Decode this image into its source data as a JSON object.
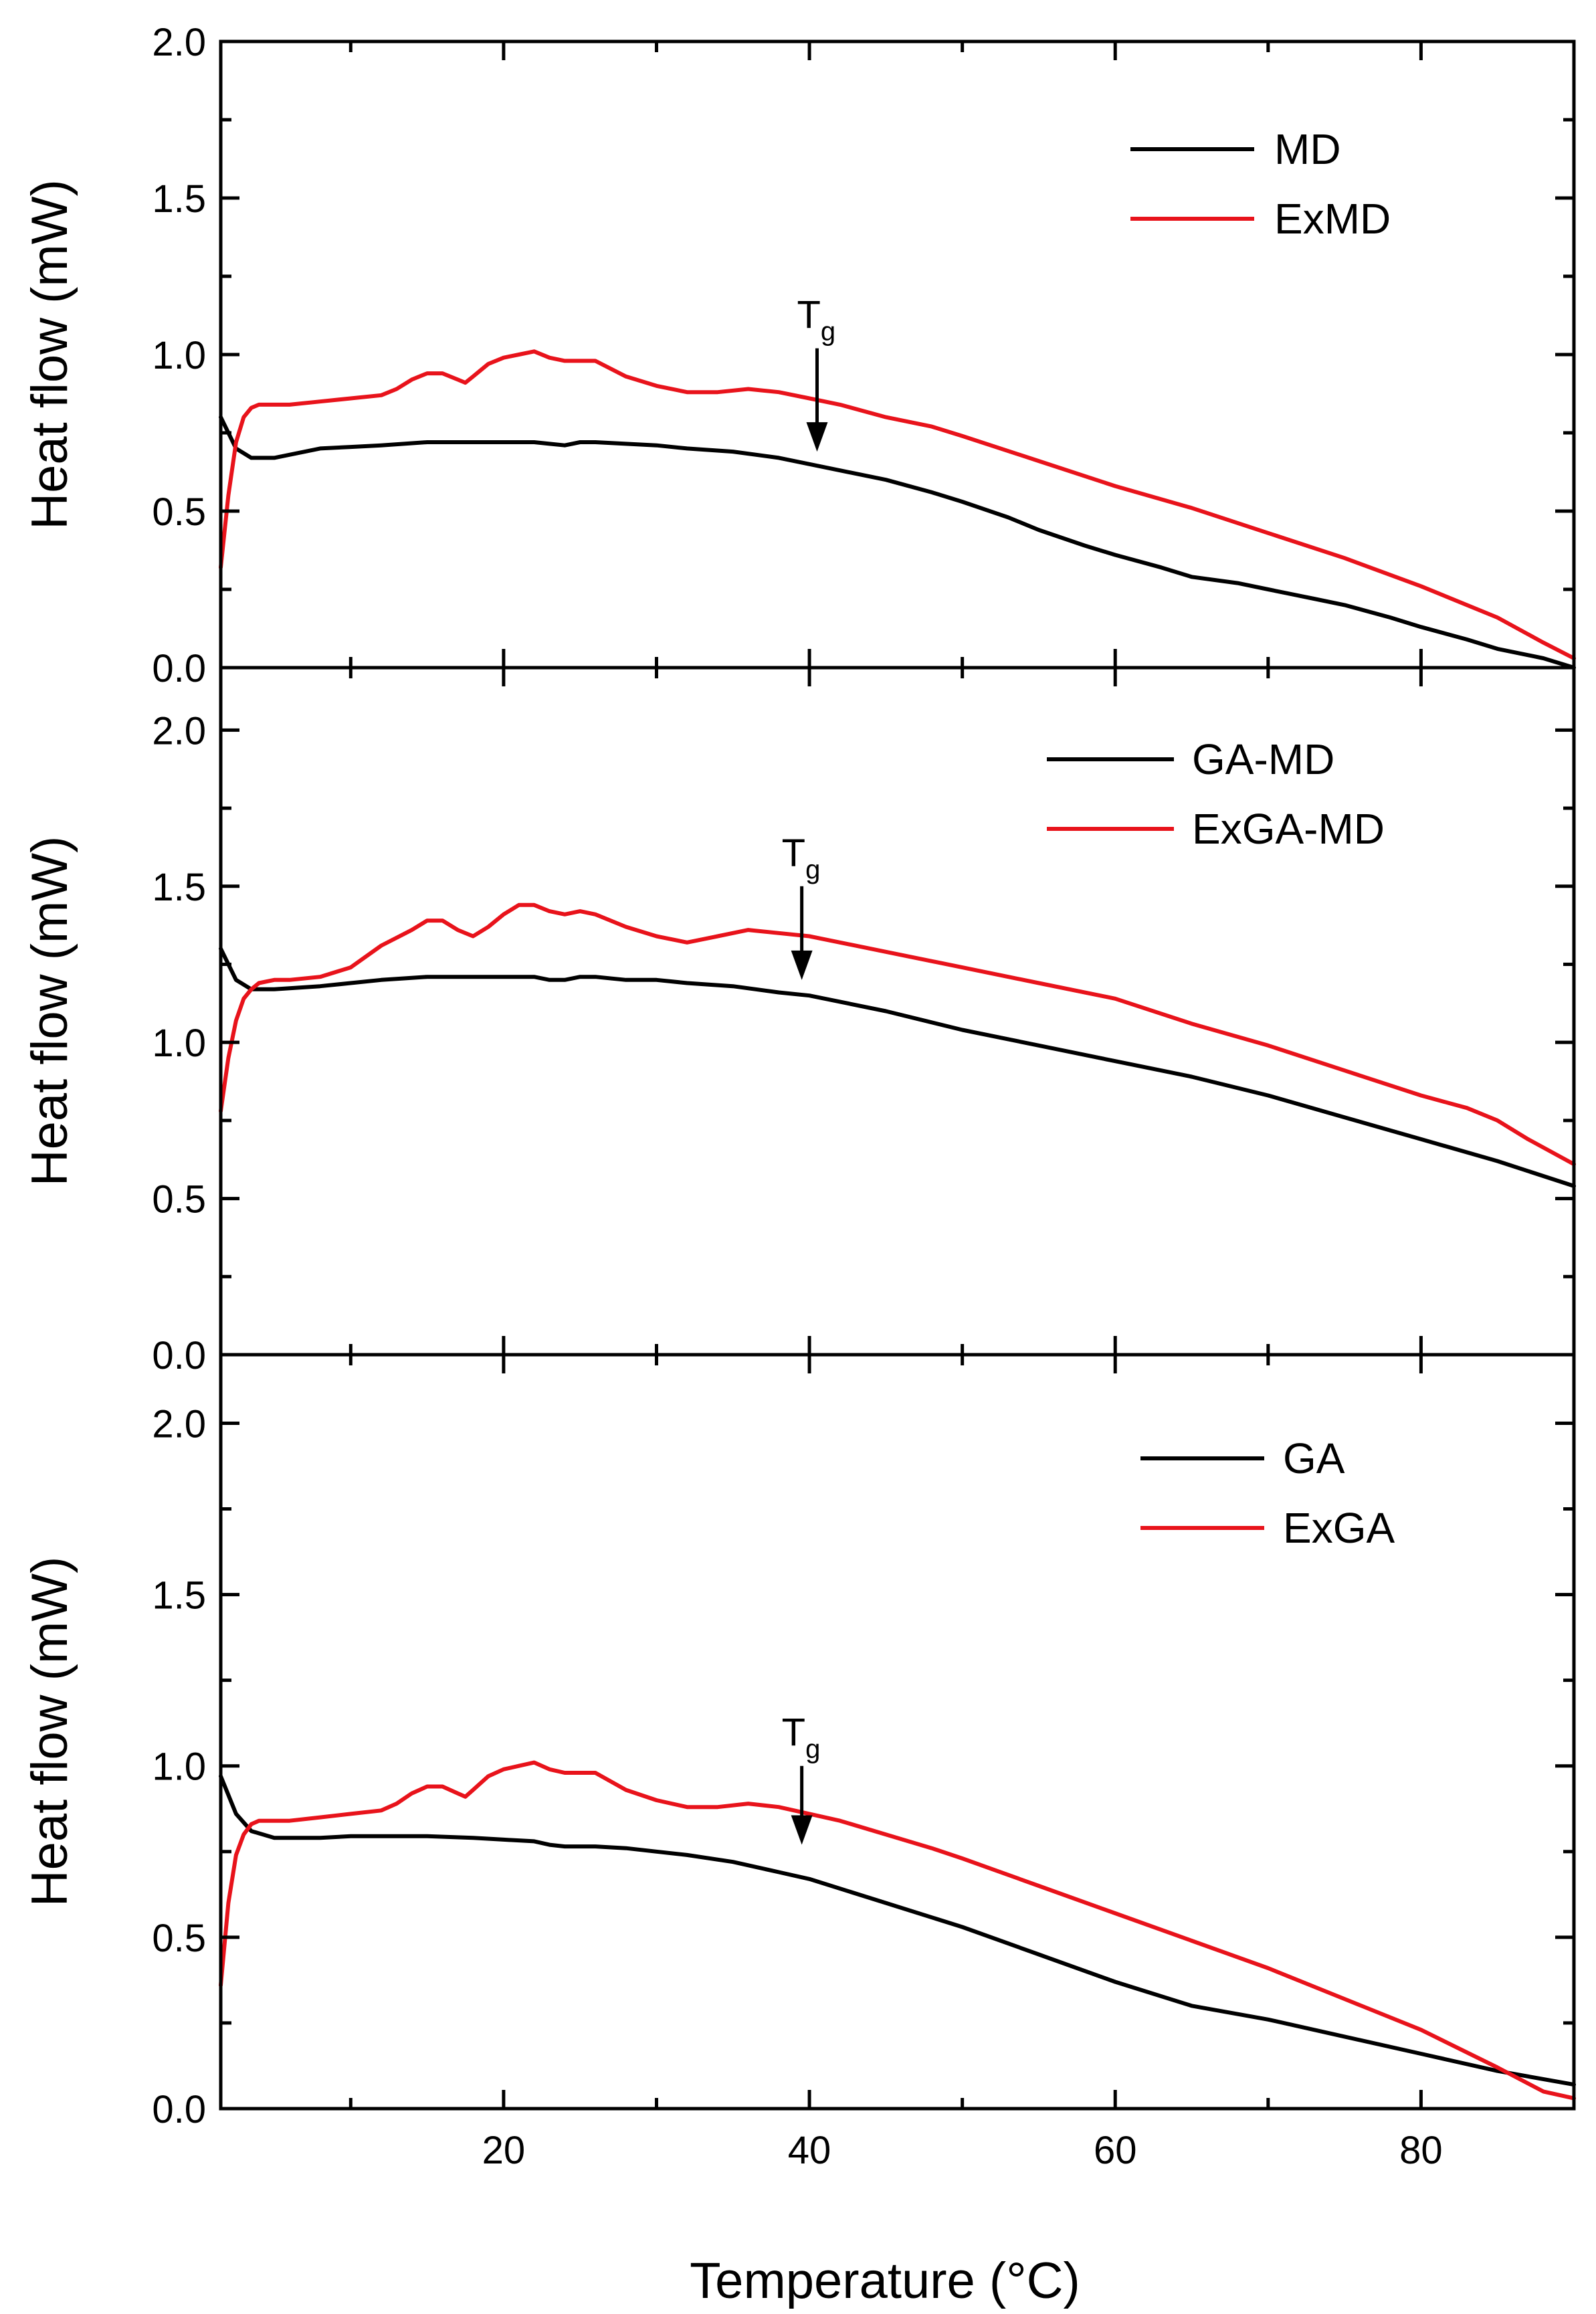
{
  "chart_data": [
    {
      "type": "line",
      "panel": "top",
      "title": "",
      "xlabel": "",
      "ylabel": "Heat flow (mW)",
      "xlim": [
        1.5,
        90
      ],
      "ylim": [
        0,
        2.0
      ],
      "yticks": [
        0.0,
        0.5,
        1.0,
        1.5,
        2.0
      ],
      "ytick_labels": [
        "0.0",
        "0.5",
        "1.0",
        "1.5",
        "2.0"
      ],
      "legend_position": "top-right",
      "annotation": {
        "text": "T",
        "subscript": "g",
        "x": 40.5,
        "arrow_from_y": 1.02,
        "arrow_to_y": 0.69
      },
      "series": [
        {
          "name": "MD",
          "color": "#000000",
          "x": [
            1.5,
            2.5,
            3.5,
            5,
            8,
            10,
            12,
            15,
            18,
            20,
            22,
            23,
            24,
            25,
            26,
            28,
            30,
            32,
            35,
            38,
            40,
            42,
            45,
            48,
            50,
            53,
            55,
            58,
            60,
            63,
            65,
            68,
            70,
            73,
            75,
            78,
            80,
            83,
            85,
            88,
            90
          ],
          "y": [
            0.8,
            0.7,
            0.67,
            0.67,
            0.7,
            0.705,
            0.71,
            0.72,
            0.72,
            0.72,
            0.72,
            0.715,
            0.71,
            0.72,
            0.72,
            0.715,
            0.71,
            0.7,
            0.69,
            0.67,
            0.65,
            0.63,
            0.6,
            0.56,
            0.53,
            0.48,
            0.44,
            0.39,
            0.36,
            0.32,
            0.29,
            0.27,
            0.25,
            0.22,
            0.2,
            0.16,
            0.13,
            0.09,
            0.06,
            0.03,
            0.0
          ]
        },
        {
          "name": "ExMD",
          "color": "#e8131b",
          "x": [
            1.5,
            2,
            2.5,
            3,
            3.5,
            4,
            5,
            6,
            8,
            10,
            12,
            13,
            14,
            15,
            16,
            17,
            17.5,
            18,
            19,
            20,
            21,
            22,
            23,
            24,
            25,
            26,
            28,
            30,
            32,
            34,
            36,
            38,
            40,
            42,
            45,
            48,
            50,
            55,
            60,
            65,
            70,
            75,
            80,
            85,
            88,
            90
          ],
          "y": [
            0.32,
            0.55,
            0.72,
            0.8,
            0.83,
            0.84,
            0.84,
            0.84,
            0.85,
            0.86,
            0.87,
            0.89,
            0.92,
            0.94,
            0.94,
            0.92,
            0.91,
            0.93,
            0.97,
            0.99,
            1.0,
            1.01,
            0.99,
            0.98,
            0.98,
            0.98,
            0.93,
            0.9,
            0.88,
            0.88,
            0.89,
            0.88,
            0.86,
            0.84,
            0.8,
            0.77,
            0.74,
            0.66,
            0.58,
            0.51,
            0.43,
            0.35,
            0.26,
            0.16,
            0.08,
            0.03
          ]
        }
      ]
    },
    {
      "type": "line",
      "panel": "middle",
      "title": "",
      "xlabel": "",
      "ylabel": "Heat flow (mW)",
      "xlim": [
        1.5,
        90
      ],
      "ylim": [
        0,
        2.2
      ],
      "yticks": [
        0.0,
        0.5,
        1.0,
        1.5,
        2.0
      ],
      "ytick_labels": [
        "0.0",
        "0.5",
        "1.0",
        "1.5",
        "2.0"
      ],
      "legend_position": "top-right",
      "annotation": {
        "text": "T",
        "subscript": "g",
        "x": 39.5,
        "arrow_from_y": 1.5,
        "arrow_to_y": 1.2
      },
      "series": [
        {
          "name": "GA-MD",
          "color": "#000000",
          "x": [
            1.5,
            2.5,
            3.5,
            5,
            8,
            10,
            12,
            15,
            18,
            20,
            22,
            23,
            24,
            25,
            26,
            28,
            30,
            32,
            35,
            38,
            40,
            45,
            50,
            55,
            60,
            65,
            70,
            75,
            80,
            85,
            90
          ],
          "y": [
            1.3,
            1.2,
            1.17,
            1.17,
            1.18,
            1.19,
            1.2,
            1.21,
            1.21,
            1.21,
            1.21,
            1.2,
            1.2,
            1.21,
            1.21,
            1.2,
            1.2,
            1.19,
            1.18,
            1.16,
            1.15,
            1.1,
            1.04,
            0.99,
            0.94,
            0.89,
            0.83,
            0.76,
            0.69,
            0.62,
            0.54
          ]
        },
        {
          "name": "ExGA-MD",
          "color": "#e8131b",
          "x": [
            1.5,
            2,
            2.5,
            3,
            3.5,
            4,
            5,
            6,
            8,
            10,
            12,
            14,
            15,
            16,
            17,
            18,
            19,
            20,
            21,
            22,
            23,
            24,
            25,
            26,
            28,
            30,
            32,
            34,
            36,
            38,
            40,
            45,
            50,
            55,
            60,
            65,
            70,
            75,
            80,
            83,
            85,
            87,
            90
          ],
          "y": [
            0.78,
            0.95,
            1.07,
            1.14,
            1.17,
            1.19,
            1.2,
            1.2,
            1.21,
            1.24,
            1.31,
            1.36,
            1.39,
            1.39,
            1.36,
            1.34,
            1.37,
            1.41,
            1.44,
            1.44,
            1.42,
            1.41,
            1.42,
            1.41,
            1.37,
            1.34,
            1.32,
            1.34,
            1.36,
            1.35,
            1.34,
            1.29,
            1.24,
            1.19,
            1.14,
            1.06,
            0.99,
            0.91,
            0.83,
            0.79,
            0.75,
            0.69,
            0.61
          ]
        }
      ]
    },
    {
      "type": "line",
      "panel": "bottom",
      "title": "",
      "xlabel": "Temperature (°C)",
      "ylabel": "Heat flow (mW)",
      "xlim": [
        1.5,
        90
      ],
      "ylim": [
        0,
        2.2
      ],
      "yticks": [
        0.0,
        0.5,
        1.0,
        1.5,
        2.0
      ],
      "ytick_labels": [
        "0.0",
        "0.5",
        "1.0",
        "1.5",
        "2.0"
      ],
      "xticks": [
        20,
        40,
        60,
        80
      ],
      "xtick_labels": [
        "20",
        "40",
        "60",
        "80"
      ],
      "legend_position": "top-right",
      "annotation": {
        "text": "T",
        "subscript": "g",
        "x": 39.5,
        "arrow_from_y": 1.0,
        "arrow_to_y": 0.77
      },
      "series": [
        {
          "name": "GA",
          "color": "#000000",
          "x": [
            1.5,
            2.5,
            3.5,
            5,
            8,
            10,
            12,
            15,
            18,
            20,
            22,
            23,
            24,
            25,
            26,
            28,
            30,
            32,
            35,
            38,
            40,
            45,
            50,
            55,
            60,
            65,
            70,
            75,
            80,
            85,
            90
          ],
          "y": [
            0.97,
            0.86,
            0.81,
            0.79,
            0.79,
            0.795,
            0.795,
            0.795,
            0.79,
            0.785,
            0.78,
            0.77,
            0.765,
            0.765,
            0.765,
            0.76,
            0.75,
            0.74,
            0.72,
            0.69,
            0.67,
            0.6,
            0.53,
            0.45,
            0.37,
            0.3,
            0.26,
            0.21,
            0.16,
            0.11,
            0.07
          ]
        },
        {
          "name": "ExGA",
          "color": "#e8131b",
          "x": [
            1.5,
            2,
            2.5,
            3,
            3.5,
            4,
            5,
            6,
            8,
            10,
            12,
            13,
            14,
            15,
            16,
            17,
            17.5,
            18,
            19,
            20,
            21,
            22,
            23,
            24,
            25,
            26,
            28,
            30,
            32,
            34,
            36,
            38,
            40,
            42,
            45,
            48,
            50,
            55,
            60,
            65,
            70,
            75,
            80,
            85,
            88,
            90
          ],
          "y": [
            0.36,
            0.6,
            0.74,
            0.8,
            0.83,
            0.84,
            0.84,
            0.84,
            0.85,
            0.86,
            0.87,
            0.89,
            0.92,
            0.94,
            0.94,
            0.92,
            0.91,
            0.93,
            0.97,
            0.99,
            1.0,
            1.01,
            0.99,
            0.98,
            0.98,
            0.98,
            0.93,
            0.9,
            0.88,
            0.88,
            0.89,
            0.88,
            0.86,
            0.84,
            0.8,
            0.76,
            0.73,
            0.65,
            0.57,
            0.49,
            0.41,
            0.32,
            0.23,
            0.12,
            0.05,
            0.03
          ]
        }
      ]
    }
  ]
}
